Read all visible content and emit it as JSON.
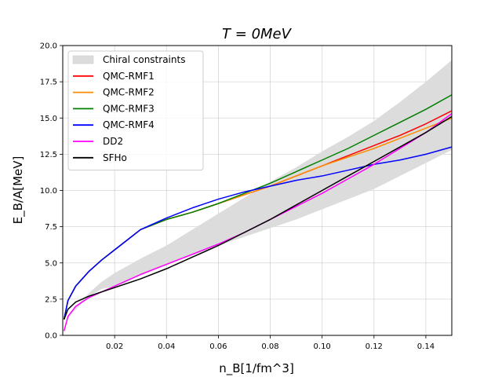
{
  "chart_data": {
    "type": "line",
    "title": "T = 0MeV",
    "xlabel": "n_B[1/fm^3]",
    "ylabel": "E_B/A[MeV]",
    "xlim": [
      0.0,
      0.15
    ],
    "ylim": [
      0.0,
      20.0
    ],
    "xticks": [
      0.02,
      0.04,
      0.06,
      0.08,
      0.1,
      0.12,
      0.14
    ],
    "xtick_labels": [
      "0.02",
      "0.04",
      "0.06",
      "0.08",
      "0.10",
      "0.12",
      "0.14"
    ],
    "yticks": [
      0.0,
      2.5,
      5.0,
      7.5,
      10.0,
      12.5,
      15.0,
      17.5,
      20.0
    ],
    "ytick_labels": [
      "0.0",
      "2.5",
      "5.0",
      "7.5",
      "10.0",
      "12.5",
      "15.0",
      "17.5",
      "20.0"
    ],
    "grid": true,
    "legend_position": "top-left",
    "band": {
      "name": "Chiral constraints",
      "color": "#dcdcdc",
      "x": [
        0.003,
        0.01,
        0.015,
        0.02,
        0.03,
        0.04,
        0.05,
        0.06,
        0.07,
        0.08,
        0.09,
        0.1,
        0.11,
        0.12,
        0.13,
        0.14,
        0.15
      ],
      "lower": [
        1.4,
        2.7,
        3.2,
        3.4,
        4.2,
        4.9,
        5.5,
        6.2,
        6.8,
        7.4,
        8.0,
        8.7,
        9.4,
        10.1,
        11.0,
        11.9,
        12.8
      ],
      "upper": [
        1.6,
        2.9,
        3.7,
        4.3,
        5.3,
        6.2,
        7.3,
        8.4,
        9.5,
        10.6,
        11.6,
        12.7,
        13.7,
        14.8,
        16.1,
        17.5,
        19.0
      ]
    },
    "series": [
      {
        "name": "QMC-RMF1",
        "color": "#ff0000",
        "x": [
          0.0005,
          0.002,
          0.005,
          0.01,
          0.015,
          0.02,
          0.025,
          0.03,
          0.04,
          0.05,
          0.06,
          0.07,
          0.08,
          0.09,
          0.1,
          0.11,
          0.12,
          0.13,
          0.14,
          0.15
        ],
        "y": [
          1.1,
          2.4,
          3.4,
          4.4,
          5.2,
          5.9,
          6.6,
          7.3,
          8.0,
          8.5,
          9.1,
          9.7,
          10.3,
          11.0,
          11.7,
          12.4,
          13.1,
          13.8,
          14.6,
          15.5
        ]
      },
      {
        "name": "QMC-RMF2",
        "color": "#ff8c00",
        "x": [
          0.0005,
          0.002,
          0.005,
          0.01,
          0.015,
          0.02,
          0.025,
          0.03,
          0.04,
          0.05,
          0.06,
          0.07,
          0.08,
          0.09,
          0.1,
          0.11,
          0.12,
          0.13,
          0.14,
          0.15
        ],
        "y": [
          1.1,
          2.4,
          3.4,
          4.4,
          5.2,
          5.9,
          6.6,
          7.3,
          8.0,
          8.5,
          9.1,
          9.7,
          10.3,
          11.0,
          11.7,
          12.3,
          12.9,
          13.6,
          14.3,
          15.0
        ]
      },
      {
        "name": "QMC-RMF3",
        "color": "#008000",
        "x": [
          0.0005,
          0.002,
          0.005,
          0.01,
          0.015,
          0.02,
          0.025,
          0.03,
          0.04,
          0.05,
          0.06,
          0.07,
          0.08,
          0.09,
          0.1,
          0.11,
          0.12,
          0.13,
          0.14,
          0.15
        ],
        "y": [
          1.1,
          2.4,
          3.4,
          4.4,
          5.2,
          5.9,
          6.6,
          7.3,
          8.0,
          8.5,
          9.1,
          9.8,
          10.5,
          11.3,
          12.1,
          12.9,
          13.8,
          14.7,
          15.6,
          16.6
        ]
      },
      {
        "name": "QMC-RMF4",
        "color": "#0000ff",
        "x": [
          0.0005,
          0.002,
          0.005,
          0.01,
          0.015,
          0.02,
          0.025,
          0.03,
          0.04,
          0.05,
          0.06,
          0.07,
          0.08,
          0.09,
          0.1,
          0.11,
          0.12,
          0.13,
          0.14,
          0.15
        ],
        "y": [
          1.1,
          2.4,
          3.4,
          4.4,
          5.2,
          5.9,
          6.6,
          7.3,
          8.1,
          8.8,
          9.4,
          9.9,
          10.3,
          10.7,
          11.0,
          11.4,
          11.8,
          12.1,
          12.5,
          13.0
        ]
      },
      {
        "name": "DD2",
        "color": "#ff00ff",
        "x": [
          0.0005,
          0.002,
          0.005,
          0.01,
          0.015,
          0.02,
          0.03,
          0.04,
          0.05,
          0.06,
          0.07,
          0.08,
          0.09,
          0.1,
          0.11,
          0.12,
          0.13,
          0.14,
          0.15
        ],
        "y": [
          0.3,
          1.3,
          2.0,
          2.6,
          3.0,
          3.4,
          4.2,
          4.9,
          5.6,
          6.3,
          7.1,
          8.0,
          8.9,
          9.8,
          10.8,
          11.8,
          12.9,
          14.0,
          15.3
        ]
      },
      {
        "name": "SFHo",
        "color": "#000000",
        "x": [
          0.0005,
          0.002,
          0.005,
          0.01,
          0.015,
          0.02,
          0.03,
          0.04,
          0.05,
          0.06,
          0.07,
          0.08,
          0.09,
          0.1,
          0.11,
          0.12,
          0.13,
          0.14,
          0.15
        ],
        "y": [
          1.1,
          1.8,
          2.3,
          2.7,
          3.0,
          3.3,
          3.9,
          4.6,
          5.4,
          6.2,
          7.1,
          8.0,
          9.0,
          10.0,
          11.0,
          12.0,
          13.0,
          14.0,
          15.1
        ]
      }
    ]
  }
}
